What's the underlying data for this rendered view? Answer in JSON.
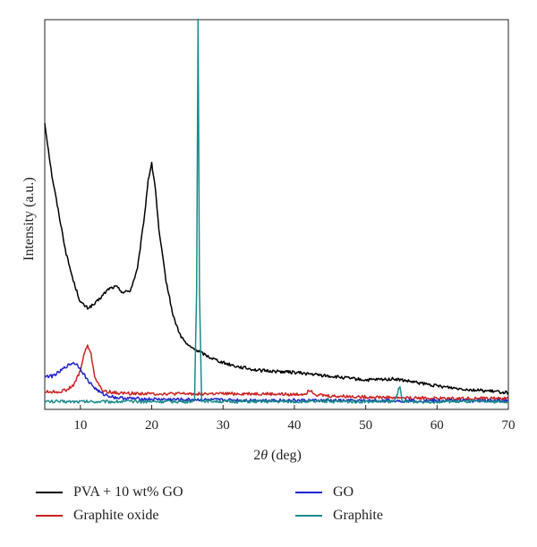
{
  "chart_data": {
    "type": "line",
    "xlabel_prefix": "2",
    "xlabel_symbol": "θ",
    "xlabel_suffix": " (deg)",
    "ylabel": "Intensity (a.u.)",
    "xlim": [
      5,
      70
    ],
    "ylim": [
      0,
      1.0
    ],
    "x_ticks": [
      10,
      20,
      30,
      40,
      50,
      60,
      70
    ],
    "grid": false,
    "legend_position": "bottom",
    "series": [
      {
        "name": "PVA + 10 wt% GO",
        "color": "#000000",
        "points": [
          [
            5,
            0.735
          ],
          [
            6,
            0.6
          ],
          [
            7,
            0.5
          ],
          [
            8,
            0.4
          ],
          [
            9,
            0.33
          ],
          [
            10,
            0.275
          ],
          [
            11,
            0.26
          ],
          [
            12,
            0.27
          ],
          [
            13,
            0.29
          ],
          [
            14,
            0.31
          ],
          [
            15,
            0.315
          ],
          [
            16,
            0.3
          ],
          [
            17,
            0.305
          ],
          [
            18,
            0.36
          ],
          [
            19,
            0.5
          ],
          [
            19.5,
            0.59
          ],
          [
            20,
            0.63
          ],
          [
            20.5,
            0.57
          ],
          [
            21,
            0.46
          ],
          [
            22,
            0.33
          ],
          [
            23,
            0.24
          ],
          [
            24,
            0.19
          ],
          [
            25,
            0.165
          ],
          [
            26,
            0.155
          ],
          [
            27,
            0.145
          ],
          [
            28,
            0.135
          ],
          [
            30,
            0.12
          ],
          [
            32,
            0.11
          ],
          [
            35,
            0.1
          ],
          [
            40,
            0.095
          ],
          [
            45,
            0.085
          ],
          [
            50,
            0.075
          ],
          [
            54,
            0.078
          ],
          [
            56,
            0.072
          ],
          [
            60,
            0.06
          ],
          [
            65,
            0.05
          ],
          [
            70,
            0.043
          ]
        ]
      },
      {
        "name": "Graphite oxide",
        "color": "#cc2222",
        "points": [
          [
            5,
            0.045
          ],
          [
            7,
            0.045
          ],
          [
            8,
            0.05
          ],
          [
            9,
            0.06
          ],
          [
            10,
            0.1
          ],
          [
            10.5,
            0.14
          ],
          [
            11,
            0.165
          ],
          [
            11.5,
            0.14
          ],
          [
            12,
            0.085
          ],
          [
            13,
            0.048
          ],
          [
            15,
            0.042
          ],
          [
            20,
            0.04
          ],
          [
            25,
            0.04
          ],
          [
            30,
            0.04
          ],
          [
            35,
            0.04
          ],
          [
            40,
            0.038
          ],
          [
            41.5,
            0.04
          ],
          [
            42.3,
            0.05
          ],
          [
            43,
            0.038
          ],
          [
            45,
            0.034
          ],
          [
            50,
            0.032
          ],
          [
            55,
            0.03
          ],
          [
            60,
            0.028
          ],
          [
            65,
            0.028
          ],
          [
            70,
            0.028
          ]
        ]
      },
      {
        "name": "GO",
        "color": "#2222cc",
        "points": [
          [
            5,
            0.085
          ],
          [
            6,
            0.085
          ],
          [
            7,
            0.095
          ],
          [
            8,
            0.11
          ],
          [
            9,
            0.12
          ],
          [
            9.5,
            0.115
          ],
          [
            10,
            0.105
          ],
          [
            11,
            0.075
          ],
          [
            12,
            0.055
          ],
          [
            13,
            0.04
          ],
          [
            15,
            0.03
          ],
          [
            17,
            0.028
          ],
          [
            20,
            0.026
          ],
          [
            25,
            0.025
          ],
          [
            30,
            0.024
          ],
          [
            40,
            0.023
          ],
          [
            50,
            0.022
          ],
          [
            60,
            0.022
          ],
          [
            70,
            0.022
          ]
        ]
      },
      {
        "name": "Graphite",
        "color": "#1a8a8a",
        "points": [
          [
            5,
            0.02
          ],
          [
            10,
            0.02
          ],
          [
            20,
            0.02
          ],
          [
            25,
            0.02
          ],
          [
            26,
            0.022
          ],
          [
            26.3,
            0.3
          ],
          [
            26.5,
            1.0
          ],
          [
            26.7,
            0.3
          ],
          [
            27,
            0.022
          ],
          [
            30,
            0.02
          ],
          [
            40,
            0.02
          ],
          [
            44.5,
            0.02
          ],
          [
            44.7,
            0.03
          ],
          [
            45,
            0.02
          ],
          [
            54,
            0.02
          ],
          [
            54.6,
            0.05
          ],
          [
            54.8,
            0.055
          ],
          [
            55.1,
            0.02
          ],
          [
            60,
            0.02
          ],
          [
            70,
            0.02
          ]
        ]
      }
    ]
  }
}
